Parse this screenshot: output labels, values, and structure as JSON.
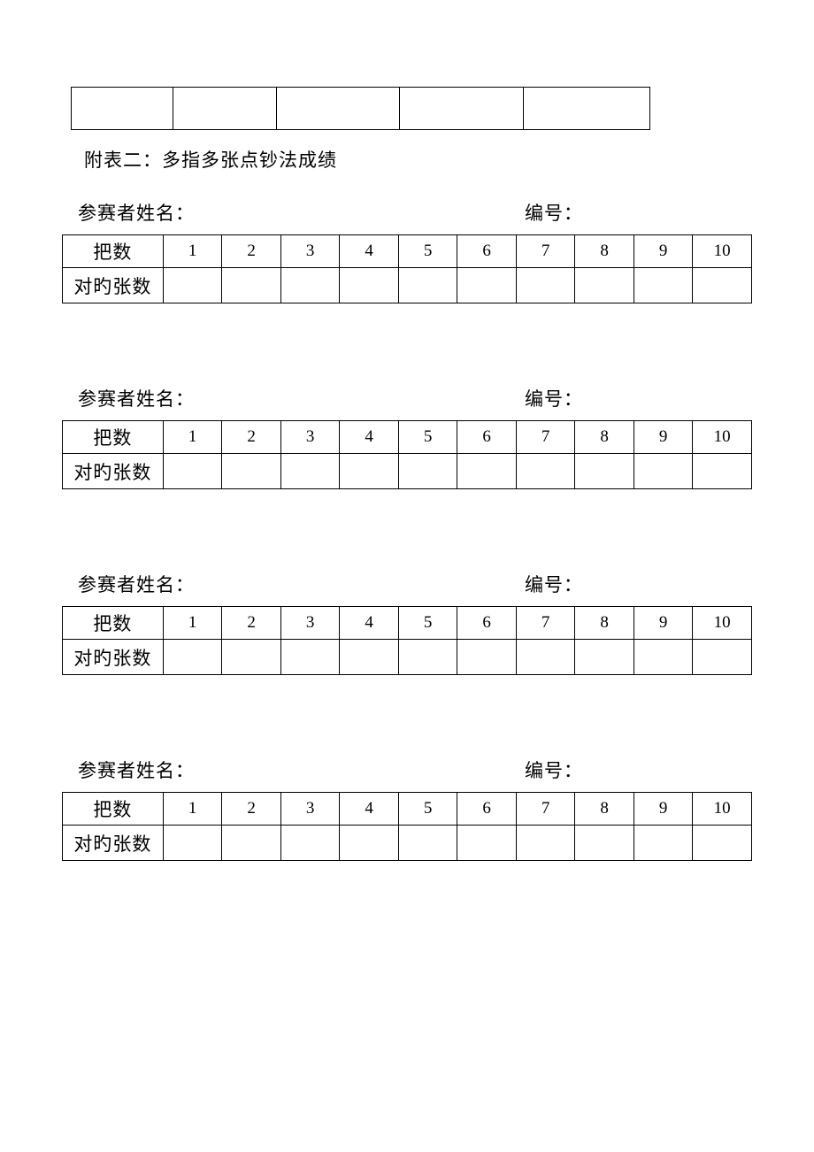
{
  "title": "附表二：多指多张点钞法成绩",
  "labels": {
    "participant_name": "参赛者姓名：",
    "number": "编号：",
    "row1_header": "把数",
    "row2_header": "对旳张数"
  },
  "columns": [
    "1",
    "2",
    "3",
    "4",
    "5",
    "6",
    "7",
    "8",
    "9",
    "10"
  ],
  "sections": [
    {
      "name": "",
      "number": "",
      "values": [
        "",
        "",
        "",
        "",
        "",
        "",
        "",
        "",
        "",
        ""
      ]
    },
    {
      "name": "",
      "number": "",
      "values": [
        "",
        "",
        "",
        "",
        "",
        "",
        "",
        "",
        "",
        ""
      ]
    },
    {
      "name": "",
      "number": "",
      "values": [
        "",
        "",
        "",
        "",
        "",
        "",
        "",
        "",
        "",
        ""
      ]
    },
    {
      "name": "",
      "number": "",
      "values": [
        "",
        "",
        "",
        "",
        "",
        "",
        "",
        "",
        "",
        ""
      ]
    }
  ],
  "style": {
    "page_background": "#ffffff",
    "text_color": "#000000",
    "border_color": "#000000",
    "title_fontsize": 21,
    "label_fontsize": 21,
    "header_fontsize": 21,
    "number_fontsize": 19
  }
}
